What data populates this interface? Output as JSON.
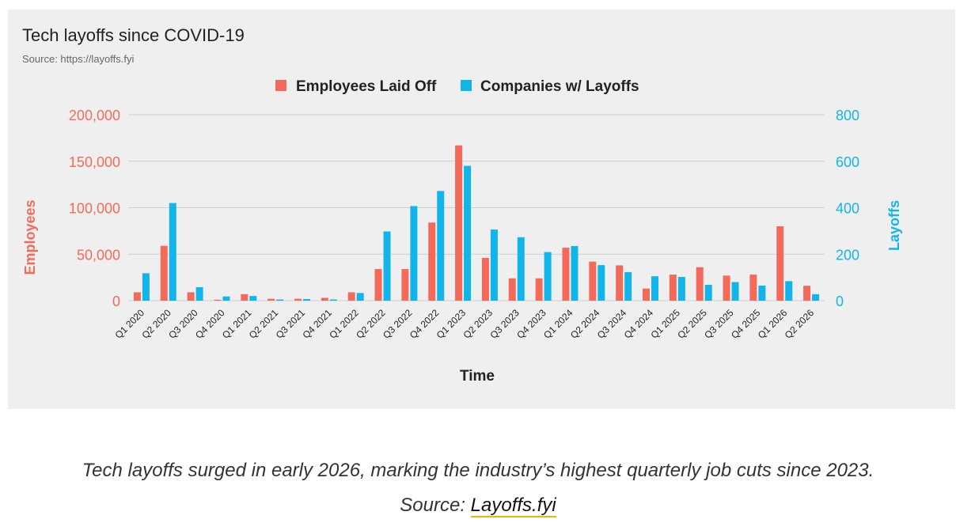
{
  "title": "Tech layoffs since COVID-19",
  "source": "Source: https://layoffs.fyi",
  "caption": {
    "text": "Tech layoffs surged in early 2026, marking the industry’s highest quarterly job cuts since 2023.",
    "source_prefix": "Source: ",
    "source_link": "Layoffs.fyi"
  },
  "colors": {
    "employees": "#f46a5a",
    "companies": "#12b5ea",
    "grid": "#cfcfcf"
  },
  "chart_data": {
    "type": "bar",
    "title": "Tech layoffs since COVID-19",
    "xlabel": "Time",
    "ylabel": "Employees",
    "y2label": "Layoffs",
    "ylim": [
      0,
      200000
    ],
    "y2lim": [
      0,
      800
    ],
    "yticks": [
      "0",
      "50,000",
      "100,000",
      "150,000",
      "200,000"
    ],
    "y2ticks": [
      "0",
      "200",
      "400",
      "600",
      "800"
    ],
    "grid": true,
    "legend": "top-center",
    "categories": [
      "Q1 2020",
      "Q2 2020",
      "Q3 2020",
      "Q4 2020",
      "Q1 2021",
      "Q2 2021",
      "Q3 2021",
      "Q4 2021",
      "Q1 2022",
      "Q2 2022",
      "Q3 2022",
      "Q4 2022",
      "Q1 2023",
      "Q2 2023",
      "Q3 2023",
      "Q4 2023",
      "Q1 2024",
      "Q2 2024",
      "Q3 2024",
      "Q4 2024",
      "Q1 2025",
      "Q2 2025",
      "Q3 2025",
      "Q4 2025",
      "Q1 2026",
      "Q2 2026"
    ],
    "series": [
      {
        "name": "Employees Laid Off",
        "axis": "left",
        "values": [
          9000,
          59000,
          9000,
          1000,
          7000,
          2000,
          2000,
          3000,
          9000,
          34000,
          34000,
          84000,
          167000,
          46000,
          24000,
          24000,
          57000,
          42000,
          38000,
          13000,
          28000,
          36000,
          27000,
          28000,
          80000,
          16000
        ]
      },
      {
        "name": "Companies w/ Layoffs",
        "axis": "right",
        "values": [
          118,
          420,
          58,
          18,
          20,
          5,
          7,
          5,
          33,
          298,
          407,
          472,
          580,
          306,
          273,
          209,
          235,
          153,
          123,
          105,
          102,
          68,
          80,
          65,
          84,
          28
        ]
      }
    ]
  }
}
